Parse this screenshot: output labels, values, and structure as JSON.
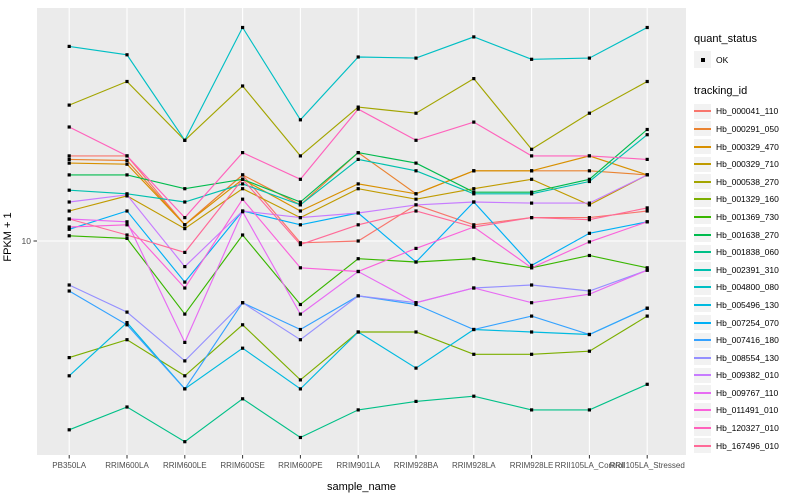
{
  "figure": {
    "y_axis": {
      "title": "FPKM + 1",
      "tick_label": "10"
    },
    "x_axis": {
      "title": "sample_name"
    },
    "legend": {
      "quant_status_title": "quant_status",
      "quant_status_items": [
        {
          "label": "OK",
          "marker": "black-point"
        }
      ],
      "tracking_id_title": "tracking_id"
    },
    "colors": {
      "panel_bg": "#EBEBEB",
      "gridline": "#FFFFFF",
      "tick_text": "#4D4D4D",
      "tick_mark": "#333333",
      "point": "#000000",
      "legend_key_bg": "#F2F2F2"
    }
  },
  "chart_data": {
    "type": "line",
    "title": "",
    "xlabel": "sample_name",
    "ylabel": "FPKM + 1",
    "y_scale": "log10",
    "y_tick_labels": [
      "10"
    ],
    "ylim": [
      1,
      130
    ],
    "grid": "white vertical gridline per sample; horizontal gridline at y=10",
    "legend_position": "right",
    "point_marker": "small black square (quant_status = OK)",
    "categories": [
      "PB350LA",
      "RRIM600LA",
      "RRIM600LE",
      "RRIM600SE",
      "RRIM600PE",
      "RRIM901LA",
      "RRIM928BA",
      "RRIM928LA",
      "RRIM928LE",
      "RRII105LA_Control",
      "RRII105LA_Stressed"
    ],
    "series": [
      {
        "name": "Hb_000041_110",
        "color": "#F8766D",
        "quant_status": "OK",
        "values": [
          26,
          26,
          12,
          21,
          9.8,
          10,
          15,
          12,
          13,
          13,
          14
        ]
      },
      {
        "name": "Hb_000291_050",
        "color": "#EA8331",
        "quant_status": "OK",
        "values": [
          25,
          24.7,
          12,
          21,
          15,
          27,
          17,
          22,
          22,
          22,
          21
        ]
      },
      {
        "name": "Hb_000329_470",
        "color": "#D89000",
        "quant_status": "OK",
        "values": [
          24,
          23.7,
          12,
          20,
          14,
          19,
          17,
          22,
          22,
          26,
          21
        ]
      },
      {
        "name": "Hb_000329_710",
        "color": "#C09B00",
        "quant_status": "OK",
        "values": [
          14,
          16.6,
          11.5,
          18,
          13,
          18,
          16,
          18,
          20,
          15,
          21
        ]
      },
      {
        "name": "Hb_000538_270",
        "color": "#A3A500",
        "quant_status": "OK",
        "values": [
          46,
          60,
          31,
          57,
          26,
          45,
          42,
          62,
          28,
          42,
          60
        ]
      },
      {
        "name": "Hb_001329_160",
        "color": "#7CAE00",
        "quant_status": "OK",
        "values": [
          2.7,
          3.3,
          2.2,
          3.9,
          2.1,
          3.6,
          3.6,
          2.8,
          2.8,
          2.9,
          4.3
        ]
      },
      {
        "name": "Hb_001369_730",
        "color": "#39B600",
        "quant_status": "OK",
        "values": [
          10.6,
          10.3,
          4.4,
          10.7,
          4.9,
          8.2,
          7.9,
          8.2,
          7.4,
          8.5,
          7.4
        ]
      },
      {
        "name": "Hb_001638_270",
        "color": "#00BB4E",
        "quant_status": "OK",
        "values": [
          21,
          21,
          18,
          20,
          15.5,
          27,
          24,
          17.3,
          17.3,
          20,
          35
        ]
      },
      {
        "name": "Hb_001838_060",
        "color": "#00C087",
        "quant_status": "OK",
        "values": [
          1.2,
          1.55,
          1.05,
          1.7,
          1.1,
          1.5,
          1.65,
          1.75,
          1.5,
          1.5,
          2.0
        ]
      },
      {
        "name": "Hb_002391_310",
        "color": "#00C0AF",
        "quant_status": "OK",
        "values": [
          17.7,
          17,
          15.5,
          19,
          15,
          25,
          22,
          17,
          17,
          19.5,
          33
        ]
      },
      {
        "name": "Hb_004800_080",
        "color": "#00BFC4",
        "quant_status": "OK",
        "values": [
          89,
          81,
          31,
          110,
          39,
          79,
          78,
          99,
          77,
          78,
          110
        ]
      },
      {
        "name": "Hb_005496_130",
        "color": "#00BAE0",
        "quant_status": "OK",
        "values": [
          2.2,
          4.0,
          1.9,
          3.0,
          1.9,
          3.6,
          2.4,
          3.7,
          3.6,
          3.5,
          4.7
        ]
      },
      {
        "name": "Hb_007254_070",
        "color": "#00B0F6",
        "quant_status": "OK",
        "values": [
          11.4,
          14,
          6.3,
          14,
          12,
          13.7,
          7.9,
          15.5,
          7.6,
          10.9,
          12.4
        ]
      },
      {
        "name": "Hb_007416_180",
        "color": "#35A2FF",
        "quant_status": "OK",
        "values": [
          5.7,
          3.9,
          1.9,
          5.0,
          3.7,
          5.4,
          4.9,
          3.7,
          4.3,
          3.5,
          4.7
        ]
      },
      {
        "name": "Hb_008554_130",
        "color": "#9590FF",
        "quant_status": "OK",
        "values": [
          6.1,
          4.5,
          2.6,
          5.0,
          3.3,
          5.4,
          5.0,
          5.9,
          6.1,
          5.7,
          7.2
        ]
      },
      {
        "name": "Hb_009382_010",
        "color": "#C77CFF",
        "quant_status": "OK",
        "values": [
          15.5,
          16.8,
          7.5,
          14,
          13,
          13.7,
          15,
          15.5,
          15.3,
          15.3,
          21
        ]
      },
      {
        "name": "Hb_009767_110",
        "color": "#E76BF3",
        "quant_status": "OK",
        "values": [
          12.8,
          12.4,
          3.2,
          13.9,
          4.4,
          7.1,
          5.0,
          5.9,
          5.0,
          5.5,
          7.2
        ]
      },
      {
        "name": "Hb_011491_010",
        "color": "#FA62DB",
        "quant_status": "OK",
        "values": [
          11.7,
          12,
          5.9,
          16,
          7.4,
          7.1,
          9.2,
          11.7,
          7.4,
          9.9,
          12.4
        ]
      },
      {
        "name": "Hb_120327_010",
        "color": "#FF62BC",
        "quant_status": "OK",
        "values": [
          36,
          26,
          13,
          27,
          20,
          44,
          31,
          38,
          26,
          26,
          25
        ]
      },
      {
        "name": "Hb_167496_010",
        "color": "#FF6A98",
        "quant_status": "OK",
        "values": [
          12.8,
          10.7,
          8.8,
          20,
          9.6,
          12,
          14,
          11.7,
          13,
          12.7,
          14.5
        ]
      }
    ]
  }
}
